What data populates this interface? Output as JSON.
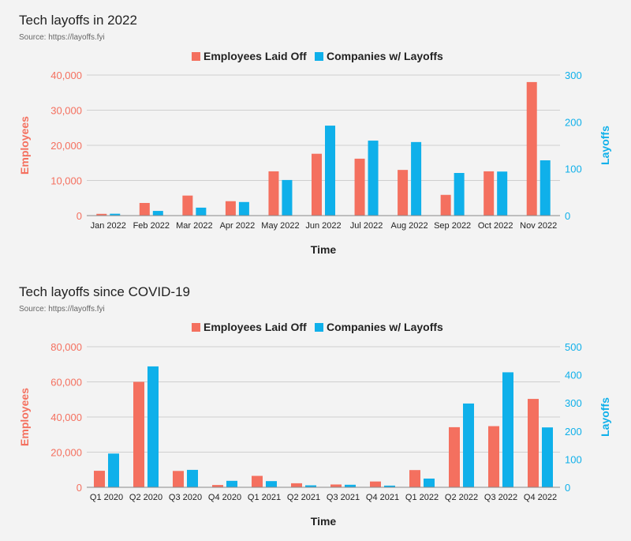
{
  "colors": {
    "employees": "#f4705f",
    "companies": "#0fb0ea",
    "grid": "#cfcfcf",
    "axis": "#888888",
    "text": "#222222"
  },
  "chart_data": [
    {
      "type": "bar",
      "title": "Tech layoffs in 2022",
      "subtitle": "Source: https://layoffs.fyi",
      "xlabel": "Time",
      "ylabel_left": "Employees",
      "ylabel_right": "Layoffs",
      "legend_position": "top-center",
      "grid": true,
      "categories": [
        "Jan 2022",
        "Feb 2022",
        "Mar 2022",
        "Apr 2022",
        "May 2022",
        "Jun 2022",
        "Jul 2022",
        "Aug 2022",
        "Sep 2022",
        "Oct 2022",
        "Nov 2022"
      ],
      "ylim_left": [
        0,
        40000
      ],
      "yticks_left": [
        "0",
        "10,000",
        "20,000",
        "30,000",
        "40,000"
      ],
      "ylim_right": [
        0,
        300
      ],
      "yticks_right": [
        "0",
        "100",
        "200",
        "300"
      ],
      "series": [
        {
          "name": "Employees Laid Off",
          "axis": "left",
          "values": [
            500,
            3600,
            5700,
            4100,
            12600,
            17600,
            16200,
            13000,
            5900,
            12600,
            38000
          ]
        },
        {
          "name": "Companies w/ Layoffs",
          "axis": "right",
          "values": [
            4,
            10,
            17,
            29,
            76,
            192,
            160,
            157,
            91,
            94,
            118
          ]
        }
      ]
    },
    {
      "type": "bar",
      "title": "Tech layoffs since COVID-19",
      "subtitle": "Source: https://layoffs.fyi",
      "xlabel": "Time",
      "ylabel_left": "Employees",
      "ylabel_right": "Layoffs",
      "legend_position": "top-center",
      "grid": true,
      "categories": [
        "Q1 2020",
        "Q2 2020",
        "Q3 2020",
        "Q4 2020",
        "Q1 2021",
        "Q2 2021",
        "Q3 2021",
        "Q4 2021",
        "Q1 2022",
        "Q2 2022",
        "Q3 2022",
        "Q4 2022"
      ],
      "ylim_left": [
        0,
        80000
      ],
      "yticks_left": [
        "0",
        "20,000",
        "40,000",
        "60,000",
        "80,000"
      ],
      "ylim_right": [
        0,
        500
      ],
      "yticks_right": [
        "0",
        "100",
        "200",
        "300",
        "400",
        "500"
      ],
      "series": [
        {
          "name": "Employees Laid Off",
          "axis": "left",
          "values": [
            9400,
            60000,
            9300,
            1300,
            6500,
            2300,
            1600,
            3300,
            9800,
            34200,
            34800,
            50300
          ]
        },
        {
          "name": "Companies w/ Layoffs",
          "axis": "right",
          "values": [
            120,
            430,
            62,
            23,
            22,
            7,
            9,
            6,
            31,
            298,
            409,
            213
          ]
        }
      ]
    }
  ]
}
